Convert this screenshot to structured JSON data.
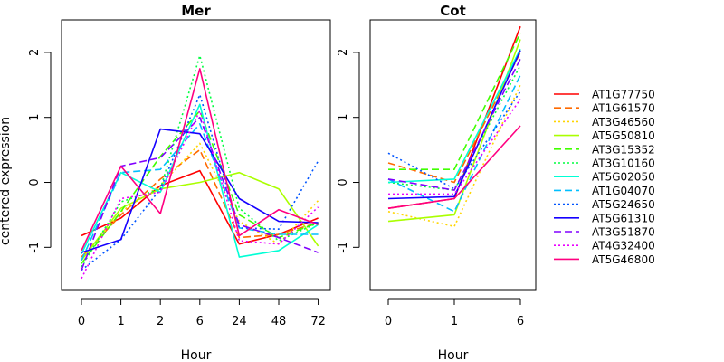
{
  "chart_data": {
    "type": "line",
    "ylabel": "centered expression",
    "ylim": [
      -1.65,
      2.5
    ],
    "yticks": [
      -1,
      0,
      1,
      2
    ],
    "grid": false,
    "legend_position": "right",
    "series": [
      {
        "name": "AT1G77750",
        "color": "#FF0000",
        "dash": "solid"
      },
      {
        "name": "AT1G61570",
        "color": "#FF6A00",
        "dash": "dashed"
      },
      {
        "name": "AT3G46560",
        "color": "#FFD500",
        "dash": "dotted"
      },
      {
        "name": "AT5G50810",
        "color": "#AAFF00",
        "dash": "solid"
      },
      {
        "name": "AT3G15352",
        "color": "#40FF00",
        "dash": "dashed"
      },
      {
        "name": "AT3G10160",
        "color": "#00FF40",
        "dash": "dotted"
      },
      {
        "name": "AT5G02050",
        "color": "#00FFD5",
        "dash": "solid"
      },
      {
        "name": "AT1G04070",
        "color": "#00BFFF",
        "dash": "dashed"
      },
      {
        "name": "AT5G24650",
        "color": "#0055FF",
        "dash": "dotted"
      },
      {
        "name": "AT5G61310",
        "color": "#1500FF",
        "dash": "solid"
      },
      {
        "name": "AT3G51870",
        "color": "#8000FF",
        "dash": "dashed"
      },
      {
        "name": "AT4G32400",
        "color": "#EA00FF",
        "dash": "dotted"
      },
      {
        "name": "AT5G46800",
        "color": "#FF0080",
        "dash": "solid"
      }
    ],
    "panels": [
      {
        "title": "Mer",
        "xlabel": "Hour",
        "categories": [
          "0",
          "1",
          "2",
          "6",
          "24",
          "48",
          "72"
        ],
        "values": [
          [
            -0.82,
            -0.55,
            -0.05,
            0.18,
            -0.95,
            -0.8,
            -0.55
          ],
          [
            -1.15,
            -0.5,
            0.05,
            0.5,
            -0.85,
            -0.8,
            -0.62
          ],
          [
            -1.2,
            -0.45,
            -0.05,
            0.6,
            -0.6,
            -0.95,
            -0.28
          ],
          [
            -1.2,
            -0.4,
            -0.1,
            0.0,
            0.15,
            -0.1,
            -0.98
          ],
          [
            -1.25,
            -0.45,
            0.4,
            1.1,
            -0.5,
            -0.85,
            -0.62
          ],
          [
            -1.3,
            -0.3,
            -0.1,
            1.95,
            -0.4,
            -0.9,
            -0.62
          ],
          [
            -1.1,
            0.15,
            -0.15,
            1.2,
            -1.15,
            -1.05,
            -0.65
          ],
          [
            -1.2,
            0.15,
            0.2,
            0.9,
            -0.7,
            -0.8,
            -0.8
          ],
          [
            -1.35,
            -0.88,
            -0.1,
            1.35,
            -0.7,
            -0.72,
            0.33
          ],
          [
            -1.08,
            -0.88,
            0.82,
            0.75,
            -0.25,
            -0.6,
            -0.62
          ],
          [
            -1.35,
            0.25,
            0.38,
            1.0,
            -0.65,
            -0.85,
            -1.08
          ],
          [
            -1.48,
            -0.25,
            -0.15,
            1.1,
            -0.9,
            -0.95,
            -0.38
          ],
          [
            -1.05,
            0.25,
            -0.48,
            1.75,
            -0.82,
            -0.42,
            -0.65
          ]
        ]
      },
      {
        "title": "Cot",
        "xlabel": "Hour",
        "categories": [
          "0",
          "1",
          "6"
        ],
        "values": [
          [
            -0.4,
            -0.25,
            2.4
          ],
          [
            0.3,
            0.0,
            2.0
          ],
          [
            -0.45,
            -0.68,
            1.5
          ],
          [
            -0.6,
            -0.5,
            2.2
          ],
          [
            0.2,
            0.2,
            2.3
          ],
          [
            0.0,
            -0.12,
            1.8
          ],
          [
            0.0,
            0.05,
            2.05
          ],
          [
            0.05,
            -0.45,
            1.65
          ],
          [
            0.45,
            -0.1,
            1.4
          ],
          [
            -0.25,
            -0.22,
            2.03
          ],
          [
            0.05,
            -0.12,
            1.9
          ],
          [
            -0.18,
            -0.18,
            1.28
          ],
          [
            -0.4,
            -0.25,
            0.87
          ]
        ]
      }
    ]
  }
}
